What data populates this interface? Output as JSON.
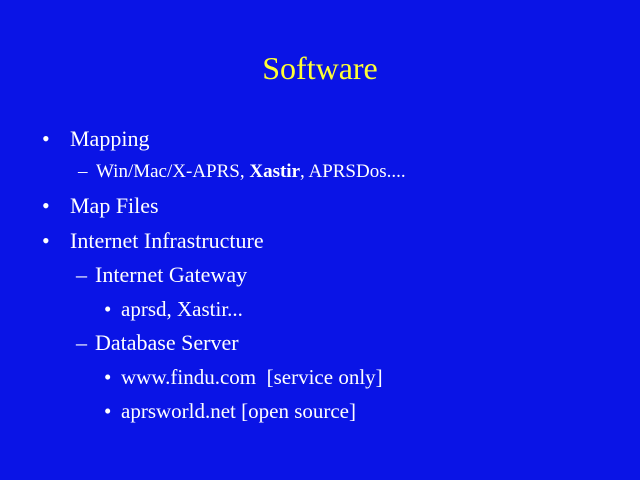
{
  "slide": {
    "title": "Software",
    "mapping": {
      "label": "Mapping",
      "sub": {
        "part1": "Win/Mac/X-APRS, ",
        "part2": "Xastir",
        "part3": ", APRSDos...."
      }
    },
    "map_files": "Map Files",
    "internet_infrastructure": "Internet Infrastructure",
    "internet_gateway": "Internet Gateway",
    "gateway_software": "aprsd, Xastir...",
    "database_server": "Database Server",
    "db_item_1": "www.findu.com  [service only]",
    "db_item_2": "aprsworld.net [open source]"
  },
  "glyphs": {
    "bullet": "•",
    "dash": "–"
  },
  "colors": {
    "background": "#0a14e6",
    "title": "#ffff33",
    "text": "#ffffff"
  }
}
